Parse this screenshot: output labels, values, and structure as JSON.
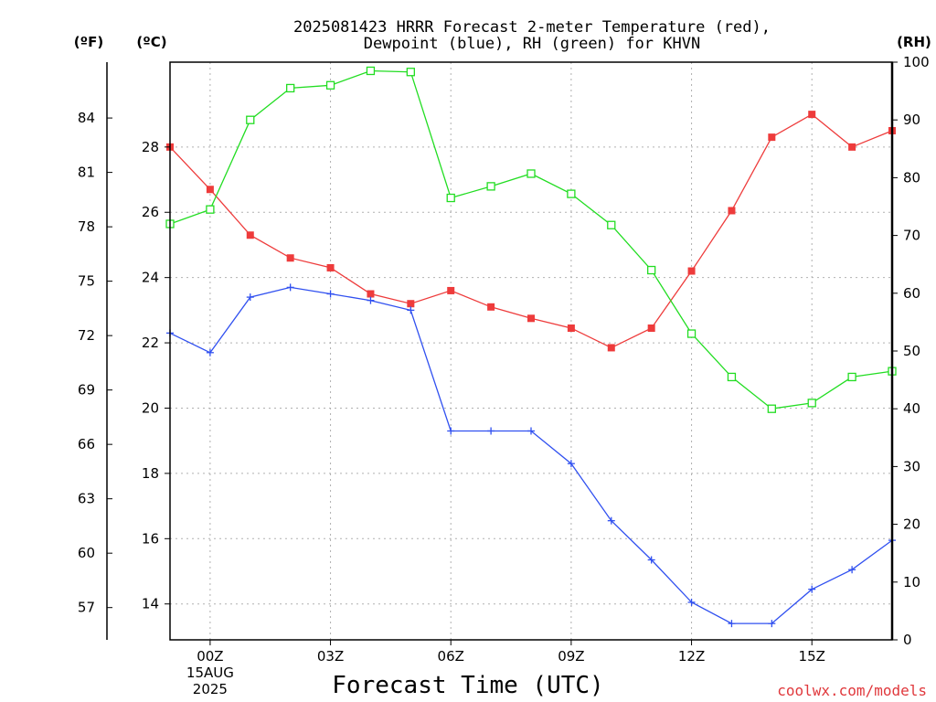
{
  "chart_data": {
    "type": "line",
    "title": "2025081423 HRRR Forecast 2-meter Temperature (red),",
    "subtitle": "Dewpoint (blue), RH (green) for KHVN",
    "xlabel": "Forecast Time (UTC)",
    "x": [
      -1,
      0,
      1,
      2,
      3,
      4,
      5,
      6,
      7,
      8,
      9,
      10,
      11,
      12,
      13,
      14,
      15,
      16,
      17
    ],
    "x_ticks": [
      {
        "x": 0,
        "label": "00Z",
        "sub1": "15AUG",
        "sub2": "2025"
      },
      {
        "x": 3,
        "label": "03Z",
        "sub1": "",
        "sub2": ""
      },
      {
        "x": 6,
        "label": "06Z",
        "sub1": "",
        "sub2": ""
      },
      {
        "x": 9,
        "label": "09Z",
        "sub1": "",
        "sub2": ""
      },
      {
        "x": 12,
        "label": "12Z",
        "sub1": "",
        "sub2": ""
      },
      {
        "x": 15,
        "label": "15Z",
        "sub1": "",
        "sub2": ""
      }
    ],
    "xlim": [
      -1,
      17
    ],
    "y_left": {
      "unit_label": "(ºC)",
      "ylim": [
        12.9,
        30.6
      ],
      "ticks": [
        14,
        16,
        18,
        20,
        22,
        24,
        26,
        28
      ]
    },
    "y_far_left": {
      "unit_label": "(ºF)",
      "ticks": [
        57,
        60,
        63,
        66,
        69,
        72,
        75,
        78,
        81,
        84
      ]
    },
    "y_right": {
      "unit_label": "(RH)",
      "ylim": [
        0,
        100
      ],
      "ticks": [
        0,
        10,
        20,
        30,
        40,
        50,
        60,
        70,
        80,
        90,
        100
      ]
    },
    "grid": true,
    "series": [
      {
        "key": "temperature",
        "axis": "left",
        "color": "#ee3b3b",
        "marker": "filled-square",
        "values": [
          28.0,
          26.7,
          25.3,
          24.6,
          24.3,
          23.5,
          23.2,
          23.6,
          23.1,
          22.75,
          22.45,
          21.85,
          22.45,
          24.2,
          26.05,
          28.3,
          29.0,
          28.0,
          28.5
        ]
      },
      {
        "key": "dewpoint",
        "axis": "left",
        "color": "#3050f0",
        "marker": "plus",
        "values": [
          22.3,
          21.7,
          23.4,
          23.7,
          23.5,
          23.3,
          23.0,
          19.3,
          19.3,
          19.3,
          18.3,
          16.55,
          15.35,
          14.05,
          13.4,
          13.4,
          14.45,
          15.05,
          15.95
        ]
      },
      {
        "key": "rh",
        "axis": "right",
        "color": "#22dd22",
        "marker": "open-square",
        "values": [
          72.0,
          74.5,
          90.0,
          95.5,
          96.0,
          98.5,
          98.3,
          76.5,
          78.5,
          80.7,
          77.2,
          71.8,
          64.0,
          53.0,
          45.5,
          40.0,
          41.0,
          45.5,
          46.5
        ]
      }
    ]
  },
  "credit": "coolwx.com/models"
}
